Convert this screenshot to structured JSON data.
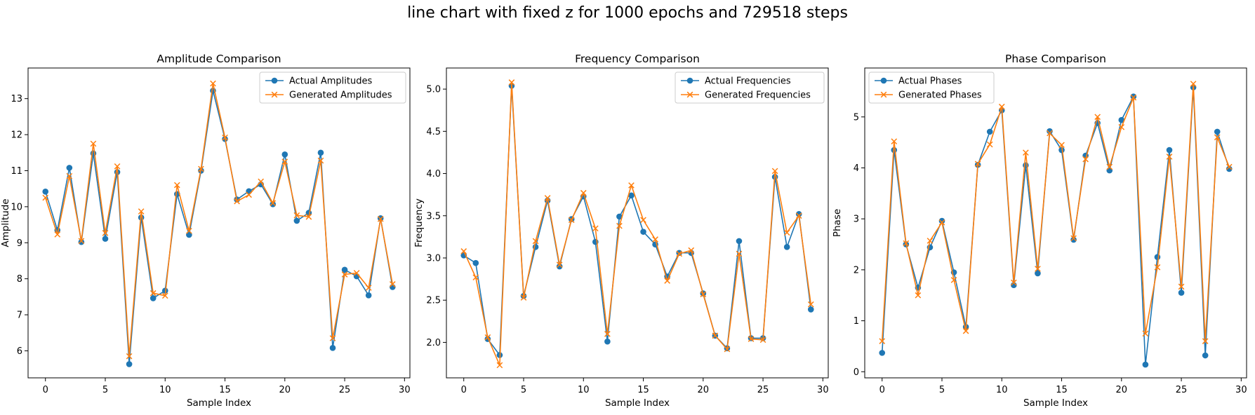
{
  "suptitle": "line chart with fixed z for 1000 epochs and 729518 steps",
  "colors": {
    "actual": "#1f77b4",
    "generated": "#ff7f0e"
  },
  "chart_data": [
    {
      "type": "line",
      "title": "Amplitude Comparison",
      "xlabel": "Sample Index",
      "ylabel": "Amplitude",
      "xlim": [
        -1.45,
        30.45
      ],
      "ylim": [
        5.25,
        13.85
      ],
      "xticks": [
        0,
        5,
        10,
        15,
        20,
        25,
        30
      ],
      "yticks": [
        6,
        7,
        8,
        9,
        10,
        11,
        12,
        13
      ],
      "legend": "upper-right",
      "x": [
        0,
        1,
        2,
        3,
        4,
        5,
        6,
        7,
        8,
        9,
        10,
        11,
        12,
        13,
        14,
        15,
        16,
        17,
        18,
        19,
        20,
        21,
        22,
        23,
        24,
        25,
        26,
        27,
        28,
        29
      ],
      "series": [
        {
          "name": "Actual Amplitudes",
          "marker": "circle",
          "values": [
            10.42,
            9.35,
            11.08,
            9.02,
            11.48,
            9.11,
            10.96,
            5.63,
            9.7,
            7.46,
            7.67,
            10.35,
            9.22,
            11.0,
            13.22,
            11.88,
            10.2,
            10.43,
            10.62,
            10.07,
            11.45,
            9.61,
            9.83,
            11.5,
            6.08,
            8.25,
            8.07,
            7.54,
            9.68,
            7.77
          ]
        },
        {
          "name": "Generated Amplitudes",
          "marker": "x",
          "values": [
            10.25,
            9.23,
            10.85,
            9.05,
            11.75,
            9.27,
            11.12,
            5.85,
            9.87,
            7.6,
            7.53,
            10.6,
            9.33,
            11.05,
            13.42,
            11.92,
            10.15,
            10.33,
            10.7,
            10.1,
            11.25,
            9.76,
            9.72,
            11.28,
            6.35,
            8.12,
            8.16,
            7.75,
            9.66,
            7.85
          ]
        }
      ]
    },
    {
      "type": "line",
      "title": "Frequency Comparison",
      "xlabel": "Sample Index",
      "ylabel": "Frequency",
      "xlim": [
        -1.45,
        30.45
      ],
      "ylim": [
        1.58,
        5.25
      ],
      "xticks": [
        0,
        5,
        10,
        15,
        20,
        25,
        30
      ],
      "yticks": [
        2.0,
        2.5,
        3.0,
        3.5,
        4.0,
        4.5,
        5.0
      ],
      "legend": "upper-right",
      "x": [
        0,
        1,
        2,
        3,
        4,
        5,
        6,
        7,
        8,
        9,
        10,
        11,
        12,
        13,
        14,
        15,
        16,
        17,
        18,
        19,
        20,
        21,
        22,
        23,
        24,
        25,
        26,
        27,
        28,
        29
      ],
      "series": [
        {
          "name": "Actual Frequencies",
          "marker": "circle",
          "values": [
            3.03,
            2.94,
            2.04,
            1.85,
            5.04,
            2.55,
            3.13,
            3.68,
            2.9,
            3.46,
            3.73,
            3.19,
            2.01,
            3.49,
            3.74,
            3.31,
            3.16,
            2.78,
            3.06,
            3.06,
            2.58,
            2.08,
            1.93,
            3.2,
            2.05,
            2.05,
            3.96,
            3.13,
            3.52,
            2.39
          ]
        },
        {
          "name": "Generated Frequencies",
          "marker": "x",
          "values": [
            3.08,
            2.77,
            2.06,
            1.73,
            5.08,
            2.53,
            3.2,
            3.71,
            2.92,
            3.45,
            3.77,
            3.35,
            2.1,
            3.38,
            3.86,
            3.45,
            3.22,
            2.73,
            3.05,
            3.09,
            2.57,
            2.08,
            1.92,
            3.05,
            2.04,
            2.03,
            4.03,
            3.3,
            3.5,
            2.45
          ]
        }
      ]
    },
    {
      "type": "line",
      "title": "Phase Comparison",
      "xlabel": "Sample Index",
      "ylabel": "Phase",
      "xlim": [
        -1.45,
        30.45
      ],
      "ylim": [
        -0.12,
        5.96
      ],
      "xticks": [
        0,
        5,
        10,
        15,
        20,
        25,
        30
      ],
      "yticks": [
        0,
        1,
        2,
        3,
        4,
        5
      ],
      "legend": "upper-left",
      "x": [
        0,
        1,
        2,
        3,
        4,
        5,
        6,
        7,
        8,
        9,
        10,
        11,
        12,
        13,
        14,
        15,
        16,
        17,
        18,
        19,
        20,
        21,
        22,
        23,
        24,
        25,
        26,
        27,
        28,
        29
      ],
      "series": [
        {
          "name": "Actual Phases",
          "marker": "circle",
          "values": [
            0.37,
            4.35,
            2.5,
            1.65,
            2.44,
            2.96,
            1.95,
            0.88,
            4.06,
            4.71,
            5.13,
            1.7,
            4.05,
            1.93,
            4.72,
            4.35,
            2.59,
            4.24,
            4.88,
            3.95,
            4.94,
            5.4,
            0.14,
            2.25,
            4.35,
            1.55,
            5.58,
            0.32,
            4.71,
            3.98
          ]
        },
        {
          "name": "Generated Phases",
          "marker": "x",
          "values": [
            0.6,
            4.52,
            2.52,
            1.5,
            2.57,
            2.93,
            1.8,
            0.8,
            4.08,
            4.46,
            5.2,
            1.75,
            4.3,
            2.02,
            4.68,
            4.45,
            2.62,
            4.17,
            5.0,
            4.02,
            4.8,
            5.38,
            0.75,
            2.05,
            4.22,
            1.67,
            5.65,
            0.6,
            4.6,
            4.02
          ]
        }
      ]
    }
  ]
}
